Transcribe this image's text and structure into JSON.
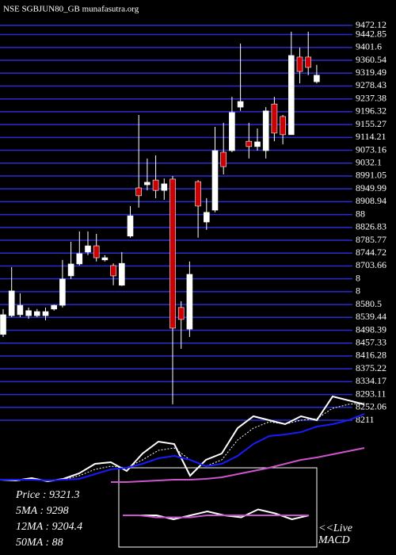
{
  "chart_data": [
    {
      "type": "candlestick",
      "title": "NSE SGBJUN80_GB munafasutra.org",
      "open": [
        8485,
        8545,
        8548,
        8545,
        8545,
        8545,
        8566,
        8578,
        8672,
        8710,
        8748,
        8768,
        8723,
        8705,
        8642,
        8799,
        8953,
        8963,
        8978,
        8945,
        8981,
        8571,
        8502,
        8973,
        8844,
        8882,
        9067,
        9072,
        9211,
        9102,
        9085,
        9072,
        9221,
        9181,
        9123,
        9371,
        9371,
        9292
      ],
      "high": [
        8566,
        8700,
        8616,
        8571,
        8566,
        8571,
        8580,
        8723,
        8781,
        8814,
        8814,
        8806,
        8738,
        8712,
        8748,
        8895,
        9186,
        9047,
        9057,
        8983,
        8991,
        8591,
        8718,
        8978,
        8920,
        9148,
        9161,
        9244,
        9414,
        9161,
        9143,
        9211,
        9244,
        9186,
        9452,
        9401,
        9452,
        9346
      ],
      "low": [
        8477,
        8540,
        8540,
        8535,
        8540,
        8530,
        8561,
        8571,
        8662,
        8705,
        8738,
        8718,
        8718,
        8642,
        8640,
        8794,
        8890,
        8945,
        8920,
        8915,
        8262,
        8439,
        8477,
        8794,
        8819,
        8875,
        8996,
        9067,
        9199,
        9047,
        9072,
        9047,
        9102,
        9092,
        9123,
        9287,
        9313,
        9287
      ],
      "close": [
        8548,
        8624,
        8578,
        8561,
        8558,
        8558,
        8578,
        8662,
        8710,
        8743,
        8768,
        8730,
        8730,
        8672,
        8712,
        8864,
        8928,
        8971,
        8945,
        8966,
        8505,
        8533,
        8677,
        8895,
        8875,
        9072,
        9021,
        9194,
        9229,
        9085,
        9100,
        9199,
        9128,
        9123,
        9376,
        9325,
        9338,
        9313
      ],
      "up_color": "#ffffff",
      "down_color": "#cc0000",
      "grid_color": "#2b2bd6",
      "ylim": [
        8211,
        9472.12
      ],
      "yticks": [
        9472.12,
        9442.85,
        9401.6,
        9360.54,
        9319.49,
        9278.43,
        9237.38,
        9196.32,
        9155.27,
        9114.21,
        9073.16,
        9032.1,
        8991.05,
        8949.99,
        8908.94,
        {
          "value": 8867.88,
          "label": "88"
        },
        8826.83,
        8785.77,
        8744.72,
        8703.66,
        {
          "value": 8662.61,
          "label": "8"
        },
        {
          "value": 8621.55,
          "label": "8"
        },
        8580.5,
        8539.44,
        8498.39,
        8457.33,
        8416.28,
        8375.22,
        8334.17,
        8293.11,
        8252.06,
        8211
      ],
      "grid": true
    },
    {
      "type": "line",
      "ylim": [
        0,
        120
      ],
      "series": [
        {
          "color": "#ffffff",
          "style": "solid",
          "values": [
            5,
            4,
            7,
            3,
            6,
            13,
            25,
            27,
            16,
            38,
            53,
            50,
            10,
            30,
            38,
            70,
            85,
            80,
            75,
            85,
            80,
            110,
            105,
            100
          ]
        },
        {
          "color": "#ffffff",
          "style": "dotted",
          "values": [
            5,
            4,
            5,
            4,
            5,
            10,
            18,
            22,
            20,
            30,
            42,
            45,
            30,
            22,
            30,
            55,
            70,
            78,
            75,
            80,
            82,
            95,
            100,
            102
          ]
        },
        {
          "color": "#1a1aff",
          "style": "solid",
          "values": [
            5,
            5,
            5,
            4,
            5,
            6,
            12,
            18,
            20,
            25,
            32,
            35,
            30,
            22,
            25,
            35,
            50,
            60,
            62,
            65,
            72,
            75,
            80,
            88
          ]
        },
        {
          "color": "#cc55cc",
          "style": "solid",
          "values": [
            null,
            null,
            null,
            null,
            null,
            null,
            null,
            2,
            2,
            3,
            4,
            5,
            5,
            6,
            8,
            12,
            16,
            20,
            25,
            30,
            33,
            37,
            41,
            45
          ]
        }
      ],
      "legend": [
        "Price : 9321.3",
        "5MA : 9298",
        "12MA : 9204.4",
        "50MA : 88"
      ]
    },
    {
      "type": "macd",
      "title": "MACD",
      "note_label": "<<Live",
      "ylim": [
        -20,
        20
      ],
      "series": [
        {
          "color": "#ffffff",
          "values": [
            0,
            0,
            0,
            -2,
            0,
            2,
            0,
            -1,
            3,
            1,
            -2,
            0
          ]
        },
        {
          "color": "#cc55cc",
          "values": [
            0,
            0,
            -1,
            -1,
            -1,
            0,
            0,
            0,
            0,
            0,
            0,
            0
          ]
        }
      ]
    }
  ]
}
